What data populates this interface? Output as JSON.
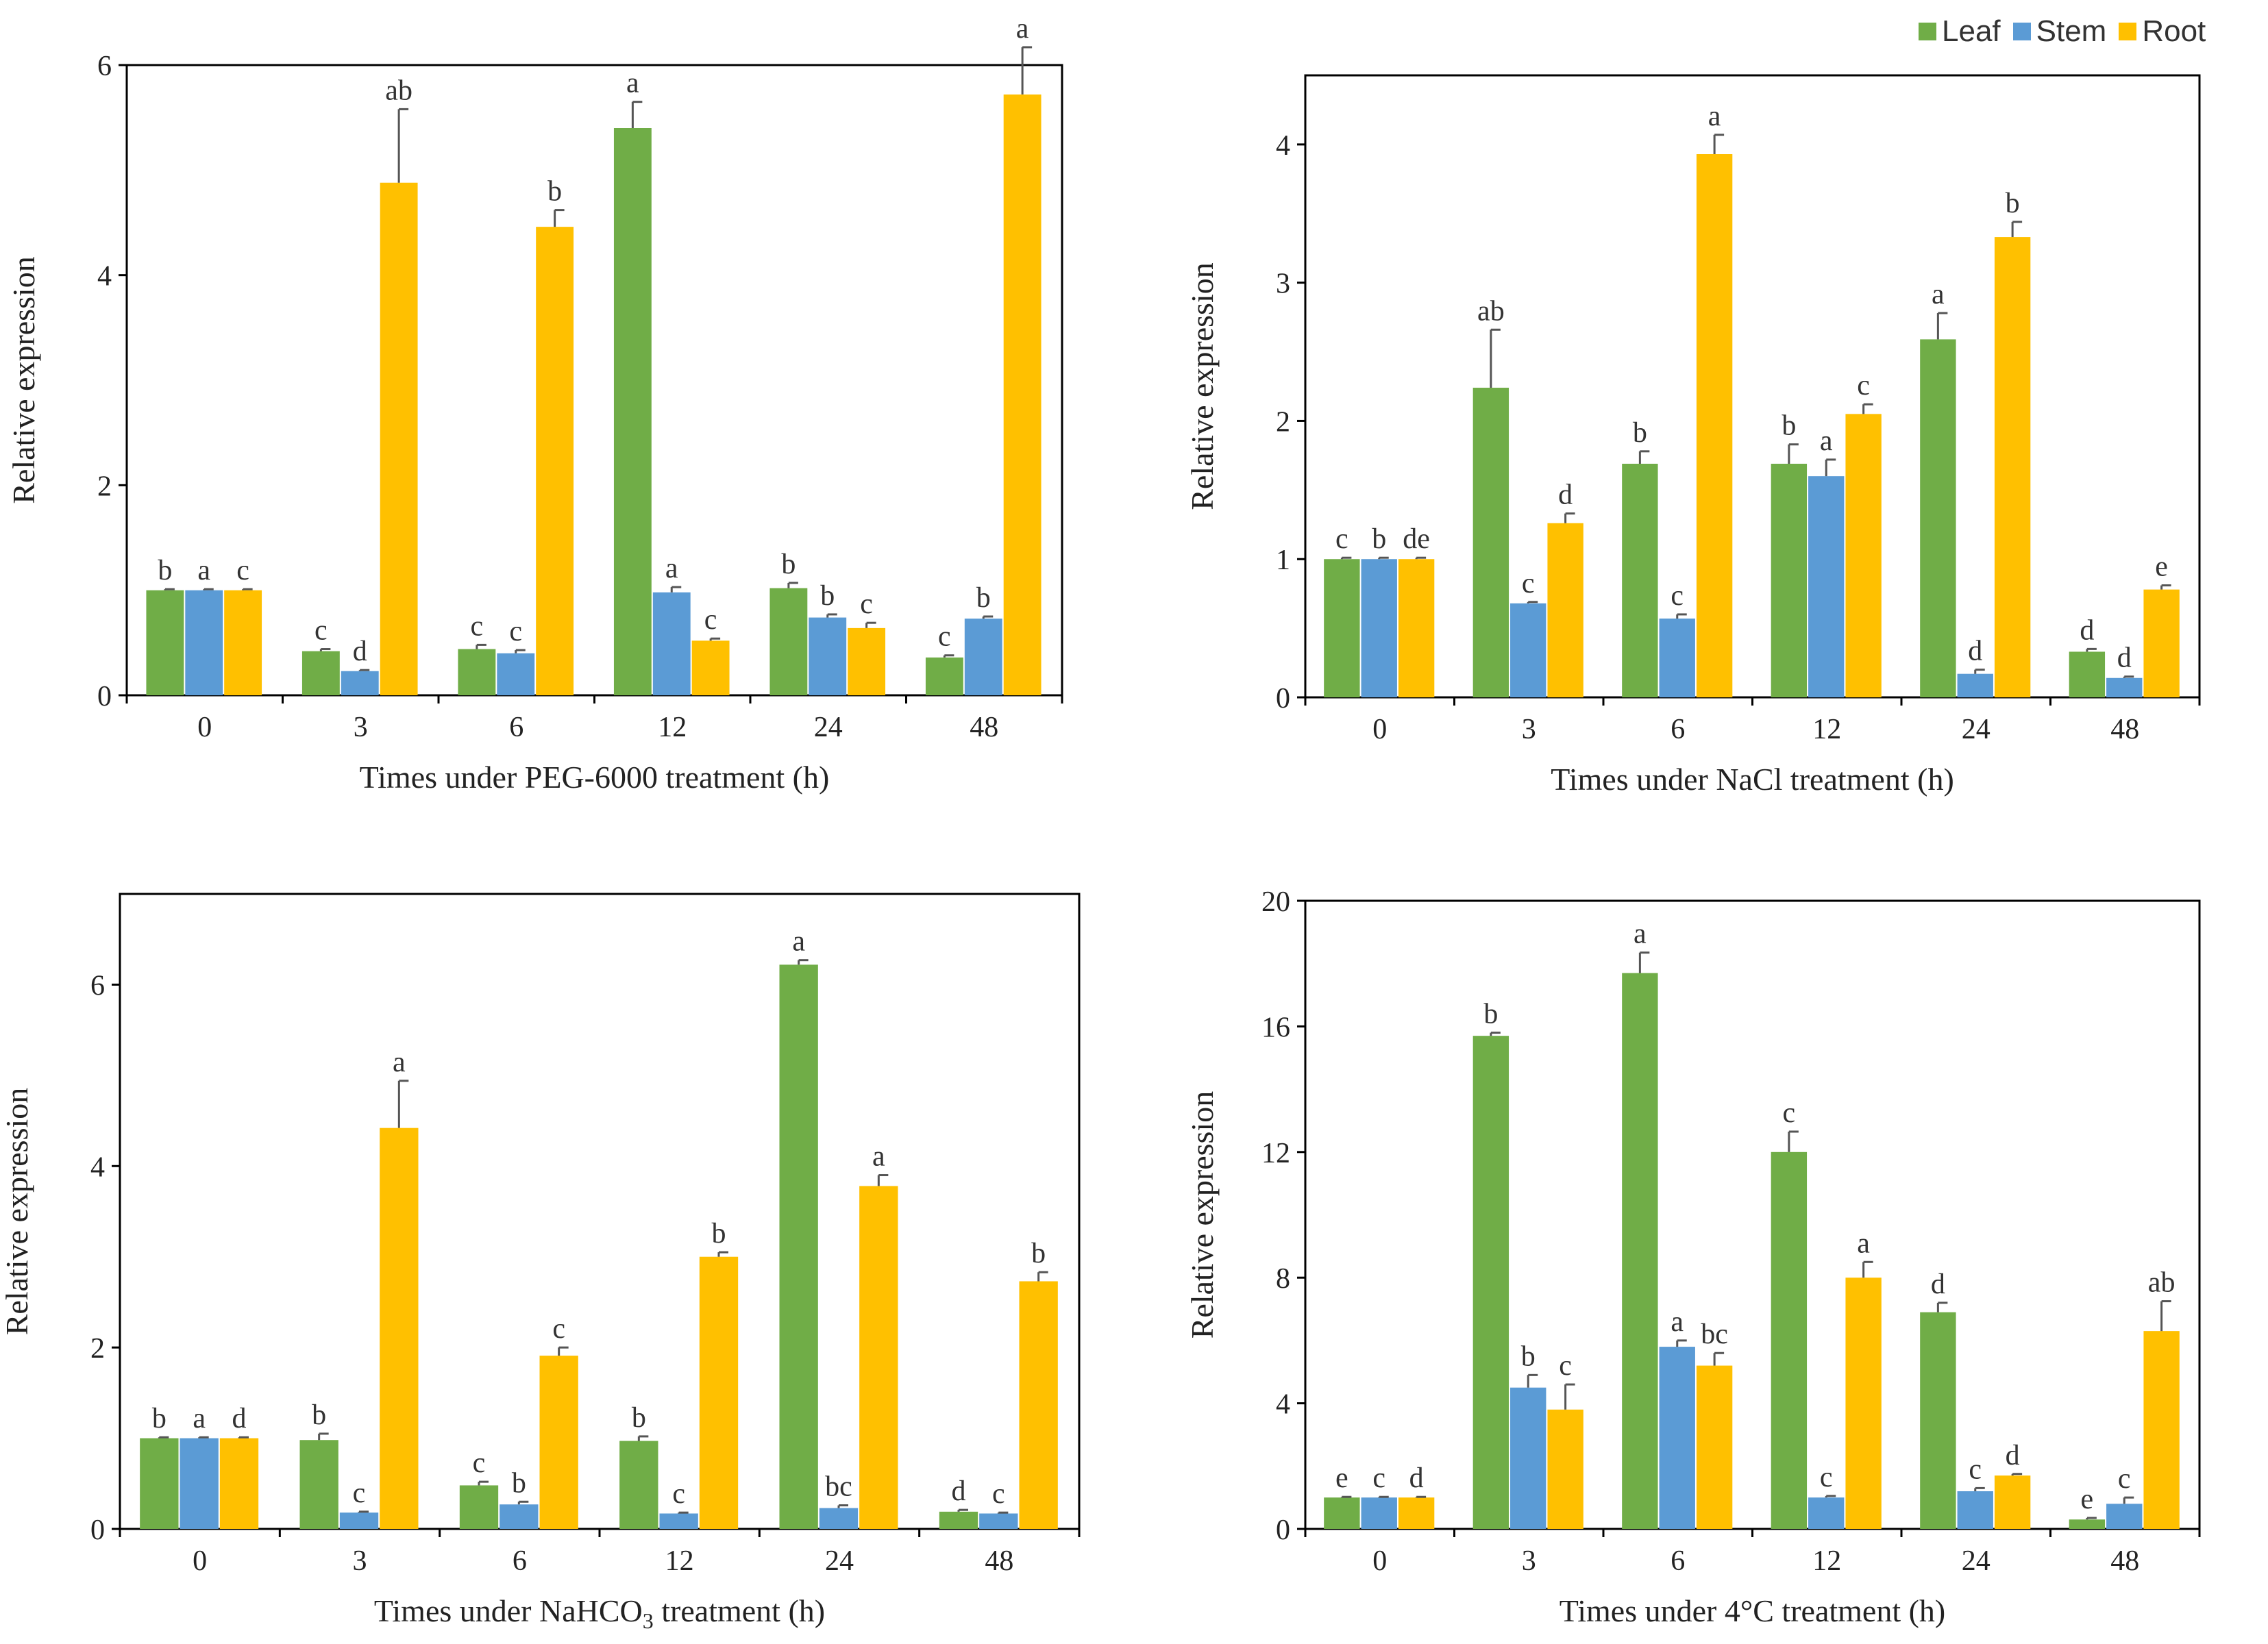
{
  "legend": [
    {
      "label": "Leaf",
      "color": "#70AD47"
    },
    {
      "label": "Stem",
      "color": "#5B9BD5"
    },
    {
      "label": "Root",
      "color": "#FFC000"
    }
  ],
  "chart_data": [
    {
      "type": "bar",
      "title": "",
      "xlabel": "Times under PEG-6000 treatment (h)",
      "ylabel": "Relative expression",
      "categories": [
        "0",
        "3",
        "6",
        "12",
        "24",
        "48"
      ],
      "ylim": [
        0,
        6
      ],
      "yticks": [
        "0",
        "2",
        "4",
        "6"
      ],
      "series": [
        {
          "name": "Leaf",
          "values": [
            1.0,
            0.42,
            0.44,
            5.4,
            1.02,
            0.36
          ],
          "errors": [
            0.01,
            0.02,
            0.04,
            0.25,
            0.05,
            0.02
          ],
          "letters": [
            "b",
            "c",
            "c",
            "a",
            "b",
            "c"
          ]
        },
        {
          "name": "Stem",
          "values": [
            1.0,
            0.23,
            0.4,
            0.98,
            0.74,
            0.73
          ],
          "errors": [
            0.01,
            0.01,
            0.03,
            0.05,
            0.03,
            0.02
          ],
          "letters": [
            "a",
            "d",
            "c",
            "a",
            "b",
            "b"
          ]
        },
        {
          "name": "Root",
          "values": [
            1.0,
            4.88,
            4.46,
            0.52,
            0.64,
            5.72
          ],
          "errors": [
            0.01,
            0.7,
            0.16,
            0.02,
            0.05,
            0.45
          ],
          "letters": [
            "c",
            "ab",
            "b",
            "c",
            "c",
            "a"
          ]
        }
      ]
    },
    {
      "type": "bar",
      "title": "",
      "xlabel": "Times under NaCl treatment (h)",
      "ylabel": "Relative expression",
      "categories": [
        "0",
        "3",
        "6",
        "12",
        "24",
        "48"
      ],
      "ylim": [
        0,
        4.5
      ],
      "yticks": [
        "0",
        "1",
        "2",
        "3",
        "4"
      ],
      "series": [
        {
          "name": "Leaf",
          "values": [
            1.0,
            2.24,
            1.69,
            1.69,
            2.59,
            0.33
          ],
          "errors": [
            0.01,
            0.42,
            0.09,
            0.14,
            0.19,
            0.02
          ],
          "letters": [
            "c",
            "ab",
            "b",
            "b",
            "a",
            "d"
          ]
        },
        {
          "name": "Stem",
          "values": [
            1.0,
            0.68,
            0.57,
            1.6,
            0.17,
            0.14
          ],
          "errors": [
            0.01,
            0.01,
            0.03,
            0.12,
            0.03,
            0.01
          ],
          "letters": [
            "b",
            "c",
            "c",
            "a",
            "d",
            "d"
          ]
        },
        {
          "name": "Root",
          "values": [
            1.0,
            1.26,
            3.93,
            2.05,
            3.33,
            0.78
          ],
          "errors": [
            0.01,
            0.07,
            0.14,
            0.07,
            0.11,
            0.03
          ],
          "letters": [
            "de",
            "d",
            "a",
            "c",
            "b",
            "e"
          ]
        }
      ]
    },
    {
      "type": "bar",
      "title": "",
      "xlabel": "Times under NaHCO",
      "xlabel_sub": "3",
      "xlabel_tail": " treatment (h)",
      "ylabel": "Relative expression",
      "categories": [
        "0",
        "3",
        "6",
        "12",
        "24",
        "48"
      ],
      "ylim": [
        0,
        7
      ],
      "yticks": [
        "0",
        "2",
        "4",
        "6"
      ],
      "series": [
        {
          "name": "Leaf",
          "values": [
            1.0,
            0.98,
            0.48,
            0.97,
            6.22,
            0.19
          ],
          "errors": [
            0.01,
            0.07,
            0.04,
            0.05,
            0.05,
            0.02
          ],
          "letters": [
            "b",
            "b",
            "c",
            "b",
            "a",
            "d"
          ]
        },
        {
          "name": "Stem",
          "values": [
            1.0,
            0.18,
            0.27,
            0.17,
            0.23,
            0.17
          ],
          "errors": [
            0.01,
            0.01,
            0.03,
            0.01,
            0.03,
            0.01
          ],
          "letters": [
            "a",
            "c",
            "b",
            "c",
            "bc",
            "c"
          ]
        },
        {
          "name": "Root",
          "values": [
            1.0,
            4.42,
            1.91,
            3.0,
            3.78,
            2.73
          ],
          "errors": [
            0.01,
            0.52,
            0.09,
            0.05,
            0.12,
            0.1
          ],
          "letters": [
            "d",
            "a",
            "c",
            "b",
            "a",
            "b"
          ]
        }
      ]
    },
    {
      "type": "bar",
      "title": "",
      "xlabel": "Times under 4°C treatment (h)",
      "ylabel": "Relative expression",
      "categories": [
        "0",
        "3",
        "6",
        "12",
        "24",
        "48"
      ],
      "ylim": [
        0,
        20
      ],
      "yticks": [
        "0",
        "4",
        "8",
        "12",
        "16",
        "20"
      ],
      "series": [
        {
          "name": "Leaf",
          "values": [
            1.0,
            15.7,
            17.7,
            12.0,
            6.9,
            0.3
          ],
          "errors": [
            0.02,
            0.1,
            0.65,
            0.65,
            0.3,
            0.05
          ],
          "letters": [
            "e",
            "b",
            "a",
            "c",
            "d",
            "e"
          ]
        },
        {
          "name": "Stem",
          "values": [
            1.0,
            4.5,
            5.8,
            1.0,
            1.2,
            0.8
          ],
          "errors": [
            0.02,
            0.4,
            0.2,
            0.05,
            0.1,
            0.2
          ],
          "letters": [
            "c",
            "b",
            "a",
            "c",
            "c",
            "c"
          ]
        },
        {
          "name": "Root",
          "values": [
            1.0,
            3.8,
            5.2,
            8.0,
            1.7,
            6.3
          ],
          "errors": [
            0.02,
            0.8,
            0.4,
            0.5,
            0.05,
            0.95
          ],
          "letters": [
            "d",
            "c",
            "bc",
            "a",
            "d",
            "ab"
          ]
        }
      ]
    }
  ]
}
